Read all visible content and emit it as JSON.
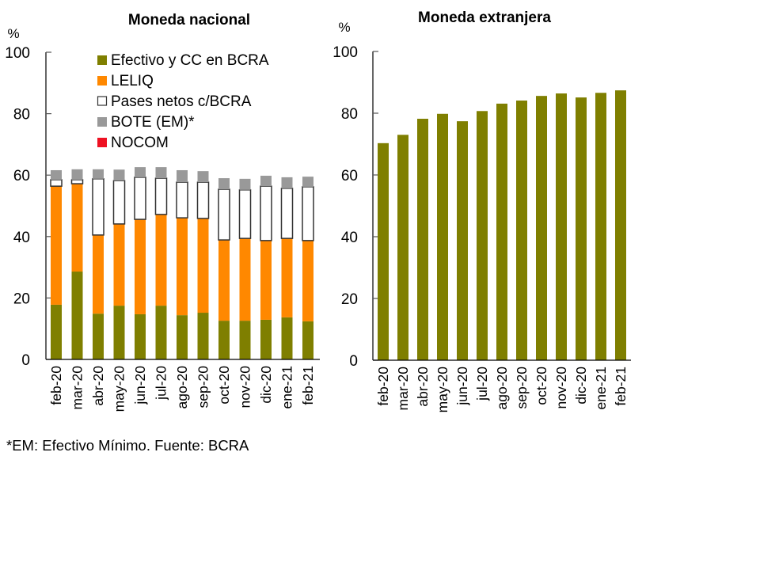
{
  "chart_data": [
    {
      "type": "bar",
      "stacked": true,
      "title": "Moneda nacional",
      "ylabel": "%",
      "xlabel": "",
      "ylim": [
        0,
        100
      ],
      "yticks": [
        0,
        20,
        40,
        60,
        80,
        100
      ],
      "grid": false,
      "legend_position": "top-right",
      "categories": [
        "feb-20",
        "mar-20",
        "abr-20",
        "may-20",
        "jun-20",
        "jul-20",
        "ago-20",
        "sep-20",
        "oct-20",
        "nov-20",
        "dic-20",
        "ene-21",
        "feb-21"
      ],
      "series": [
        {
          "name": "Efectivo y CC en BCRA",
          "color": "#7f7f00",
          "outline": false,
          "values": [
            17.8,
            28.6,
            14.9,
            17.5,
            14.7,
            17.5,
            14.4,
            15.2,
            12.6,
            12.6,
            12.9,
            13.7,
            12.4
          ]
        },
        {
          "name": "LELIQ",
          "color": "#ff8800",
          "outline": false,
          "values": [
            38.6,
            28.6,
            25.6,
            26.6,
            30.9,
            29.7,
            31.7,
            30.7,
            26.3,
            26.8,
            25.8,
            25.7,
            26.3
          ]
        },
        {
          "name": "Pases netos c/BCRA",
          "color": "#ffffff",
          "outline": true,
          "values": [
            2.1,
            1.3,
            18.3,
            14.1,
            13.7,
            11.8,
            11.6,
            11.8,
            16.5,
            15.8,
            17.7,
            16.3,
            17.5
          ]
        },
        {
          "name": "BOTE (EM)*",
          "color": "#999999",
          "outline": false,
          "values": [
            3.1,
            3.4,
            3.1,
            3.6,
            3.3,
            3.6,
            3.9,
            3.6,
            3.6,
            3.6,
            3.4,
            3.6,
            3.3
          ]
        },
        {
          "name": "NOCOM",
          "color": "#ee1122",
          "outline": false,
          "values": [
            0,
            0,
            0,
            0,
            0,
            0,
            0,
            0,
            0,
            0,
            0,
            0,
            0
          ]
        }
      ]
    },
    {
      "type": "bar",
      "stacked": false,
      "title": "Moneda extranjera",
      "ylabel": "%",
      "xlabel": "",
      "ylim": [
        0,
        100
      ],
      "yticks": [
        0,
        20,
        40,
        60,
        80,
        100
      ],
      "grid": false,
      "categories": [
        "feb-20",
        "mar-20",
        "abr-20",
        "may-20",
        "jun-20",
        "jul-20",
        "ago-20",
        "sep-20",
        "oct-20",
        "nov-20",
        "dic-20",
        "ene-21",
        "feb-21"
      ],
      "series": [
        {
          "name": "Moneda extranjera",
          "color": "#7f7f00",
          "values": [
            70.3,
            73.0,
            78.2,
            79.8,
            77.4,
            80.7,
            83.1,
            84.1,
            85.6,
            86.4,
            85.1,
            86.6,
            87.4
          ]
        }
      ]
    }
  ],
  "footnote": "*EM: Efectivo Mínimo. Fuente: BCRA"
}
